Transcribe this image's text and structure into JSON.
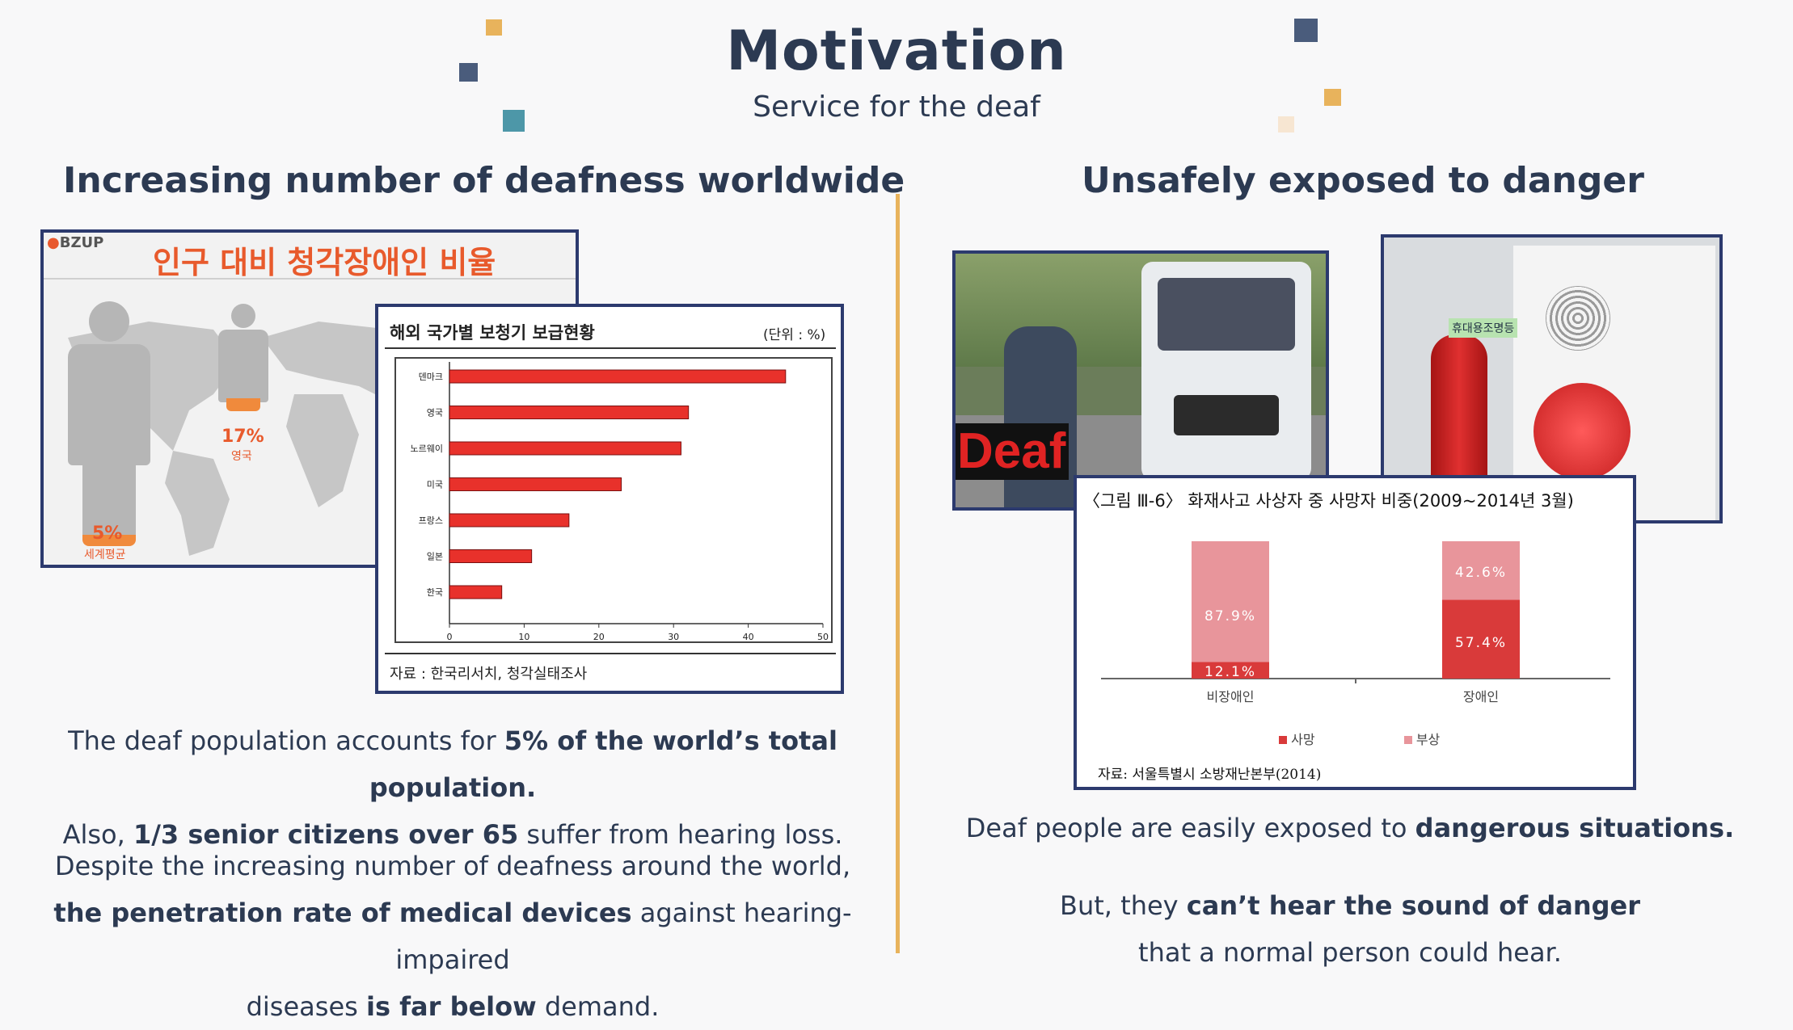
{
  "header": {
    "title": "Motivation",
    "subtitle": "Service for the deaf"
  },
  "left": {
    "heading": "Increasing number of deafness worldwide",
    "infographic": {
      "brand": "BZUP",
      "title": "인구 대비 청각장애인 비율",
      "uk_pct": "17%",
      "uk_label": "영국",
      "world_pct": "5%",
      "world_label": "세계평균"
    },
    "hearing_aid_chart": {
      "title": "해외 국가별 보청기 보급현황",
      "unit": "(단위 : %)",
      "source": "자료 : 한국리서치, 청각실태조사"
    },
    "para1": {
      "l1a": "The deaf population accounts for ",
      "l1b": "5% of the world’s total population.",
      "l2a": "Also, ",
      "l2b": "1/3 senior citizens over 65",
      "l2c": " suffer from hearing loss."
    },
    "para2": {
      "l1": "Despite the increasing number of deafness around the world,",
      "l2a": "the penetration rate of medical devices",
      "l2b": " against hearing-impaired",
      "l3a": "diseases ",
      "l3b": "is far below",
      "l3c": " demand."
    }
  },
  "right": {
    "heading": "Unsafely exposed to danger",
    "photo_caption": "Deaf",
    "device_label": "휴대용조명등",
    "fire_chart": {
      "title": "〈그림 Ⅲ-6〉 화재사고 사상자 중 사망자 비중(2009~2014년 3월)",
      "source": "자료: 서울특별시 소방재난본부(2014)",
      "legend": [
        "사망",
        "부상"
      ],
      "legend_colors": [
        "#d93a3a",
        "#e8959b"
      ]
    },
    "para1": {
      "a": "Deaf people are easily exposed to ",
      "b": "dangerous situations."
    },
    "para2": {
      "l1a": "But, they ",
      "l1b": "can’t hear the sound of danger",
      "l2": "that a normal person could hear."
    }
  },
  "chart_data": [
    {
      "type": "bar",
      "orientation": "horizontal",
      "categories": [
        "덴마크",
        "영국",
        "노르웨이",
        "미국",
        "프랑스",
        "일본",
        "한국"
      ],
      "values": [
        45,
        32,
        31,
        23,
        16,
        11,
        7
      ],
      "xticks": [
        0,
        10,
        20,
        30,
        40,
        50
      ],
      "xlim": [
        0,
        50
      ],
      "color": "#e8312b"
    },
    {
      "type": "bar",
      "stacked": true,
      "categories": [
        "비장애인",
        "장애인"
      ],
      "series": [
        {
          "name": "사망",
          "values": [
            12.1,
            57.4
          ],
          "labels": [
            "12.1%",
            "57.4%"
          ],
          "color": "#d93a3a"
        },
        {
          "name": "부상",
          "values": [
            87.9,
            42.6
          ],
          "labels": [
            "87.9%",
            "42.6%"
          ],
          "color": "#e8959b"
        }
      ],
      "ylim": [
        0,
        100
      ]
    }
  ]
}
